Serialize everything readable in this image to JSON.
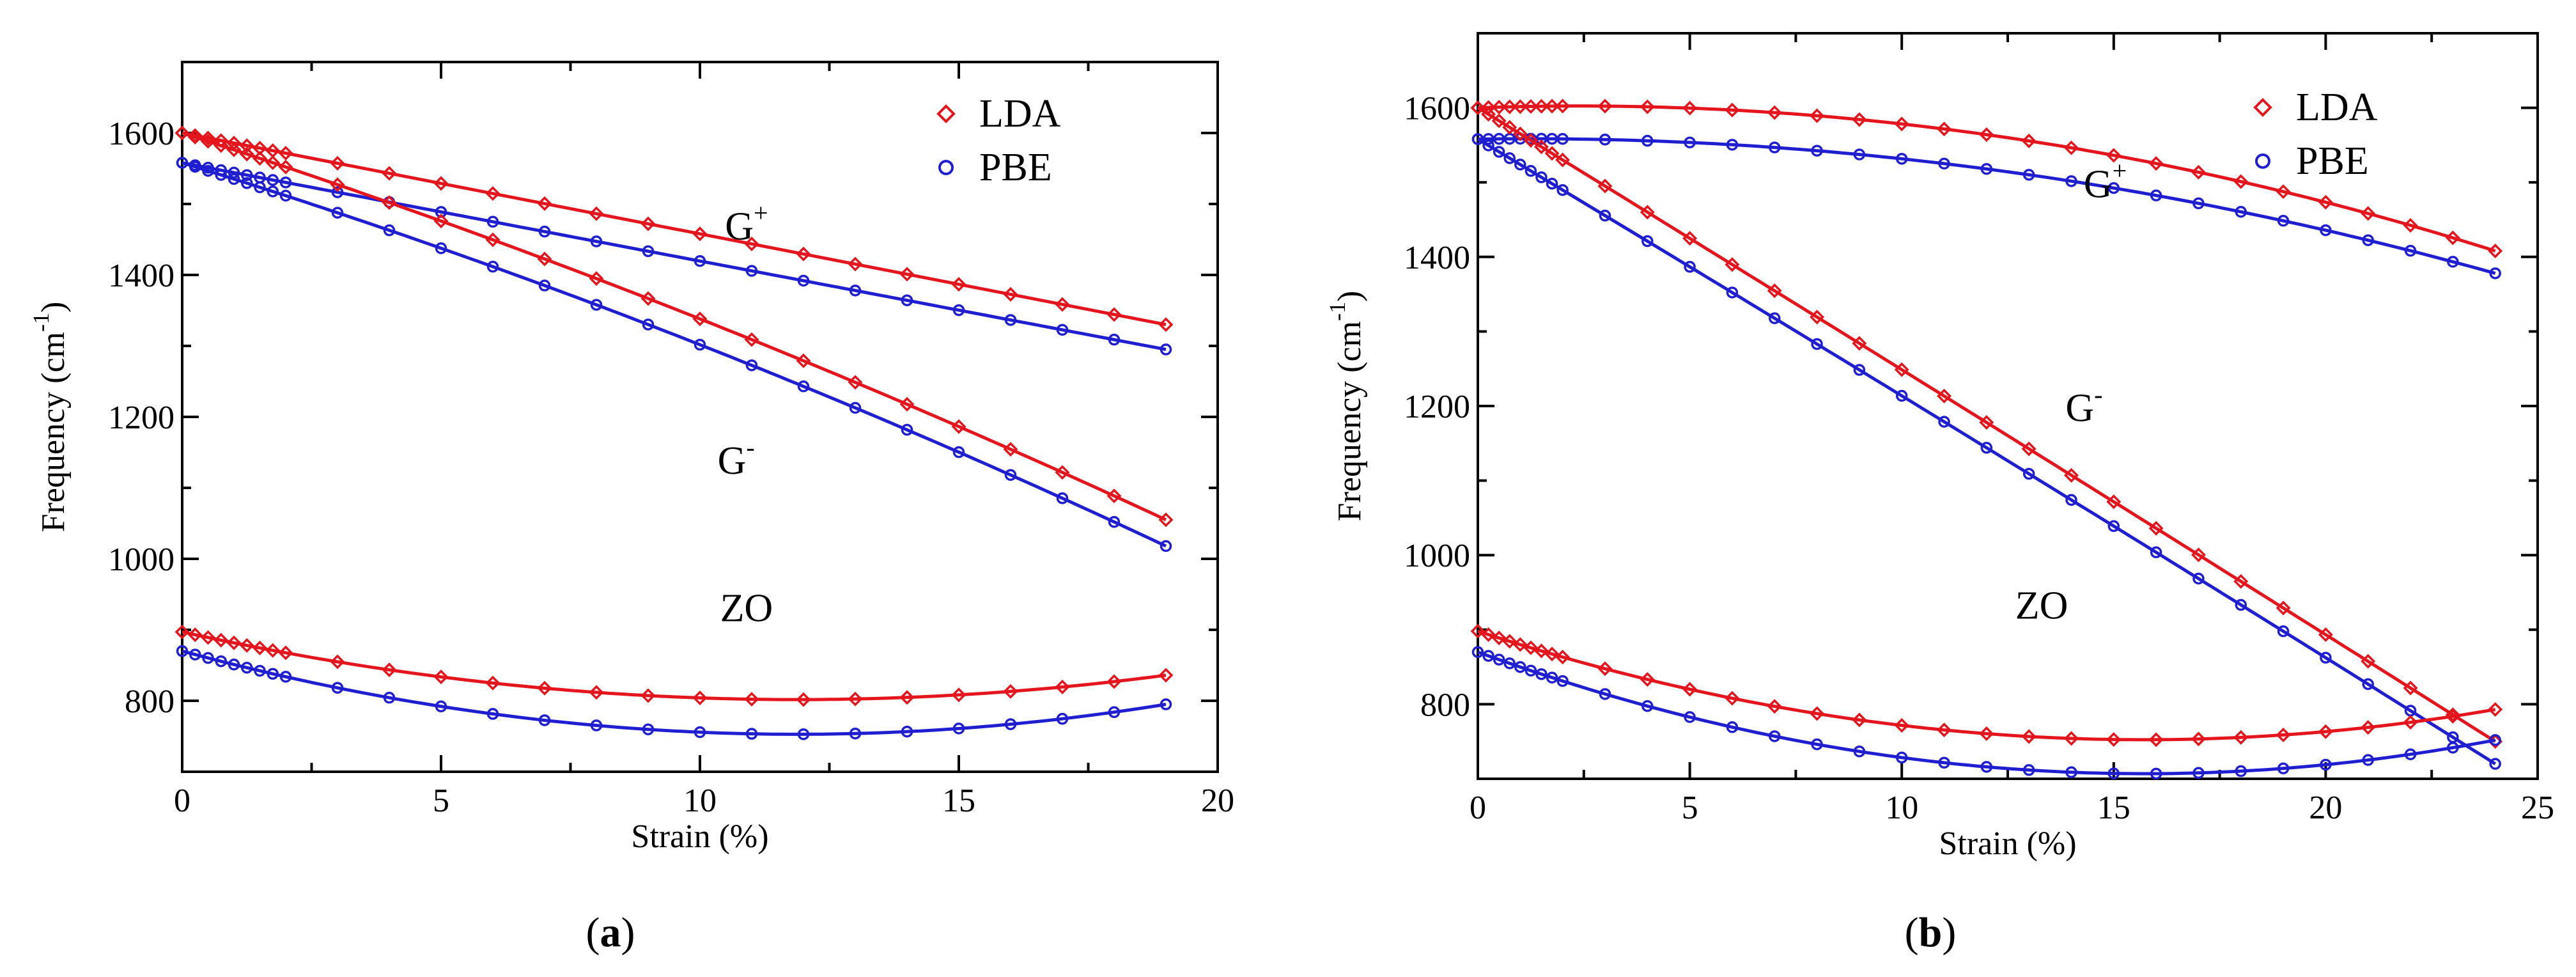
{
  "colors": {
    "LDA": "#e4151c",
    "PBE": "#1f1fd1",
    "axis": "#000000"
  },
  "chart_data": [
    {
      "type": "line",
      "panel_caption": "a",
      "xlabel": "Strain (%)",
      "ylabel": "Frequency (cm",
      "ylabel_sup": "-1",
      "ylabel_tail": ")",
      "xlim": [
        0,
        20
      ],
      "ylim": [
        700,
        1700
      ],
      "xticks": [
        0,
        5,
        10,
        15,
        20
      ],
      "yticks": [
        800,
        1000,
        1200,
        1400,
        1600
      ],
      "xtick_labels": [
        "0",
        "5",
        "10",
        "15",
        "20"
      ],
      "ytick_labels": [
        "800",
        "1000",
        "1200",
        "1400",
        "1600"
      ],
      "legend_location": "top-right",
      "legend": [
        {
          "label": "LDA",
          "marker": "diamond",
          "color": "#e4151c"
        },
        {
          "label": "PBE",
          "marker": "circle",
          "color": "#1f1fd1"
        }
      ],
      "annotations": [
        {
          "text": "G",
          "sup": "+",
          "x": 10.9,
          "y": 1450
        },
        {
          "text": "G",
          "sup": "-",
          "x": 10.7,
          "y": 1120
        },
        {
          "text": "ZO",
          "x": 10.9,
          "y": 912
        }
      ],
      "series": [
        {
          "name": "LDA",
          "branch": "G+",
          "x_max": 19,
          "y_start": 1600,
          "y_end": 1330,
          "curvature": 0
        },
        {
          "name": "PBE",
          "branch": "G+",
          "x_max": 19,
          "y_start": 1558,
          "y_end": 1295,
          "curvature": 0
        },
        {
          "name": "LDA",
          "branch": "G-",
          "x_max": 19,
          "y_start": 1600,
          "y_end": 1055,
          "curvature": 25
        },
        {
          "name": "PBE",
          "branch": "G-",
          "x_max": 19,
          "y_start": 1558,
          "y_end": 1018,
          "curvature": 28
        },
        {
          "name": "LDA",
          "branch": "ZO",
          "x_max": 19,
          "y_start": 897,
          "y_end": 836,
          "curvature": -61
        },
        {
          "name": "PBE",
          "branch": "ZO",
          "x_max": 19,
          "y_start": 870,
          "y_end": 795,
          "curvature": -75
        }
      ]
    },
    {
      "type": "line",
      "panel_caption": "b",
      "xlabel": "Strain (%)",
      "ylabel": "Frequency (cm",
      "ylabel_sup": "-1",
      "ylabel_tail": ")",
      "xlim": [
        0,
        25
      ],
      "ylim": [
        700,
        1700
      ],
      "xticks": [
        0,
        5,
        10,
        15,
        20,
        25
      ],
      "yticks": [
        800,
        1000,
        1200,
        1400,
        1600
      ],
      "xtick_labels": [
        "0",
        "5",
        "10",
        "15",
        "20",
        "25"
      ],
      "ytick_labels": [
        "800",
        "1000",
        "1200",
        "1400",
        "1600"
      ],
      "legend_location": "top-right",
      "legend": [
        {
          "label": "LDA",
          "marker": "diamond",
          "color": "#e4151c"
        },
        {
          "label": "PBE",
          "marker": "circle",
          "color": "#1f1fd1"
        }
      ],
      "annotations": [
        {
          "text": "G",
          "sup": "+",
          "x": 14.8,
          "y": 1480
        },
        {
          "text": "G",
          "sup": "-",
          "x": 14.3,
          "y": 1180
        },
        {
          "text": "ZO",
          "x": 13.3,
          "y": 915
        }
      ],
      "series": [
        {
          "name": "LDA",
          "branch": "G+",
          "x_max": 24,
          "y_start": 1600,
          "y_end": 1408,
          "curvature": 60
        },
        {
          "name": "PBE",
          "branch": "G+",
          "x_max": 24,
          "y_start": 1558,
          "y_end": 1378,
          "curvature": 50
        },
        {
          "name": "LDA",
          "branch": "G-",
          "x_max": 24,
          "y_start": 1600,
          "y_end": 750,
          "curvature": 3
        },
        {
          "name": "PBE",
          "branch": "G-",
          "x_max": 24,
          "y_start": 1558,
          "y_end": 720,
          "curvature": 5
        },
        {
          "name": "LDA",
          "branch": "ZO",
          "x_max": 24,
          "y_start": 898,
          "y_end": 793,
          "curvature": -85
        },
        {
          "name": "PBE",
          "branch": "ZO",
          "x_max": 24,
          "y_start": 870,
          "y_end": 752,
          "curvature": -95
        }
      ]
    }
  ]
}
